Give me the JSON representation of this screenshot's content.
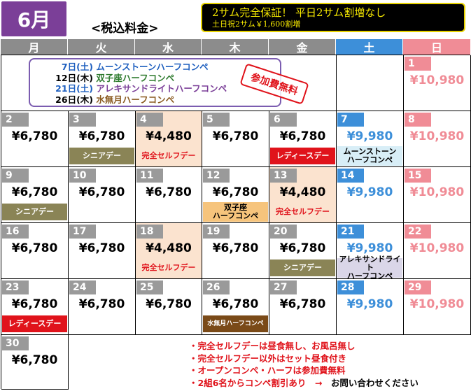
{
  "month": "6月",
  "tax_label": "<税込料金>",
  "promo": {
    "line1": "2サム完全保証！ 平日2サム割増なし",
    "line2": "土日祝2サム￥1,600割増"
  },
  "weekdays": [
    "月",
    "火",
    "水",
    "木",
    "金",
    "土",
    "日"
  ],
  "events": [
    {
      "date": "7日(土)",
      "name": "ムーンストーンハーフコンペ"
    },
    {
      "date": "12日(木)",
      "name": "双子座ハーフコンペ"
    },
    {
      "date": "21日(土)",
      "name": "アレキサンドライトハーフコンペ"
    },
    {
      "date": "26日(木)",
      "name": "水無月ハーフコンペ"
    }
  ],
  "stamp": "参加費無料",
  "first_sunday": {
    "day": "1",
    "price": "¥10,980"
  },
  "weeks": [
    [
      {
        "day": "2",
        "price": "¥6,780"
      },
      {
        "day": "3",
        "price": "¥6,780",
        "band": "シニアデー"
      },
      {
        "day": "4",
        "price": "¥4,480",
        "band": "完全セルフデー"
      },
      {
        "day": "5",
        "price": "¥6,780"
      },
      {
        "day": "6",
        "price": "¥6,780",
        "band": "レディースデー"
      },
      {
        "day": "7",
        "price": "¥9,980",
        "band": "ムーンストーン\nハーフコンペ"
      },
      {
        "day": "8",
        "price": "¥10,980"
      }
    ],
    [
      {
        "day": "9",
        "price": "¥6,780",
        "band": "シニアデー"
      },
      {
        "day": "10",
        "price": "¥6,780"
      },
      {
        "day": "11",
        "price": "¥6,780"
      },
      {
        "day": "12",
        "price": "¥6,780",
        "band": "双子座\nハーフコンペ"
      },
      {
        "day": "13",
        "price": "¥4,480",
        "band": "完全セルフデー"
      },
      {
        "day": "14",
        "price": "¥9,980"
      },
      {
        "day": "15",
        "price": "¥10,980"
      }
    ],
    [
      {
        "day": "16",
        "price": "¥6,780"
      },
      {
        "day": "17",
        "price": "¥6,780"
      },
      {
        "day": "18",
        "price": "¥4,480",
        "band": "完全セルフデー"
      },
      {
        "day": "19",
        "price": "¥6,780"
      },
      {
        "day": "20",
        "price": "¥6,780",
        "band": "シニアデー"
      },
      {
        "day": "21",
        "price": "¥9,980",
        "band": "アレキサンドライト\nハーフコンペ"
      },
      {
        "day": "22",
        "price": "¥10,980"
      }
    ],
    [
      {
        "day": "23",
        "price": "¥6,780",
        "band": "レディースデー"
      },
      {
        "day": "24",
        "price": "¥6,780"
      },
      {
        "day": "25",
        "price": "¥6,780"
      },
      {
        "day": "26",
        "price": "¥6,780",
        "band": "水無月ハーフコンペ"
      },
      {
        "day": "27",
        "price": "¥6,780"
      },
      {
        "day": "28",
        "price": "¥9,980"
      },
      {
        "day": "29",
        "price": "¥10,980"
      }
    ],
    [
      {
        "day": "30",
        "price": "¥6,780"
      }
    ]
  ],
  "notes": [
    "・完全セルフデーは昼食無し、お風呂無し",
    "・完全セルフデー以外はセット昼食付き",
    "・オープンコンペ・ハーフは参加費無料",
    "・2組6名からコンペ割引あり　→　",
    "お問い合わせください"
  ],
  "colors": {
    "month_badge": "#7b3f98",
    "saturday": "#3d8fd9",
    "sunday": "#f08c96",
    "weekday_header": "#8c8c8c",
    "senior_band": "#8a8456",
    "ladies_band": "#e0131b",
    "self_day": "#fbe3cf"
  }
}
